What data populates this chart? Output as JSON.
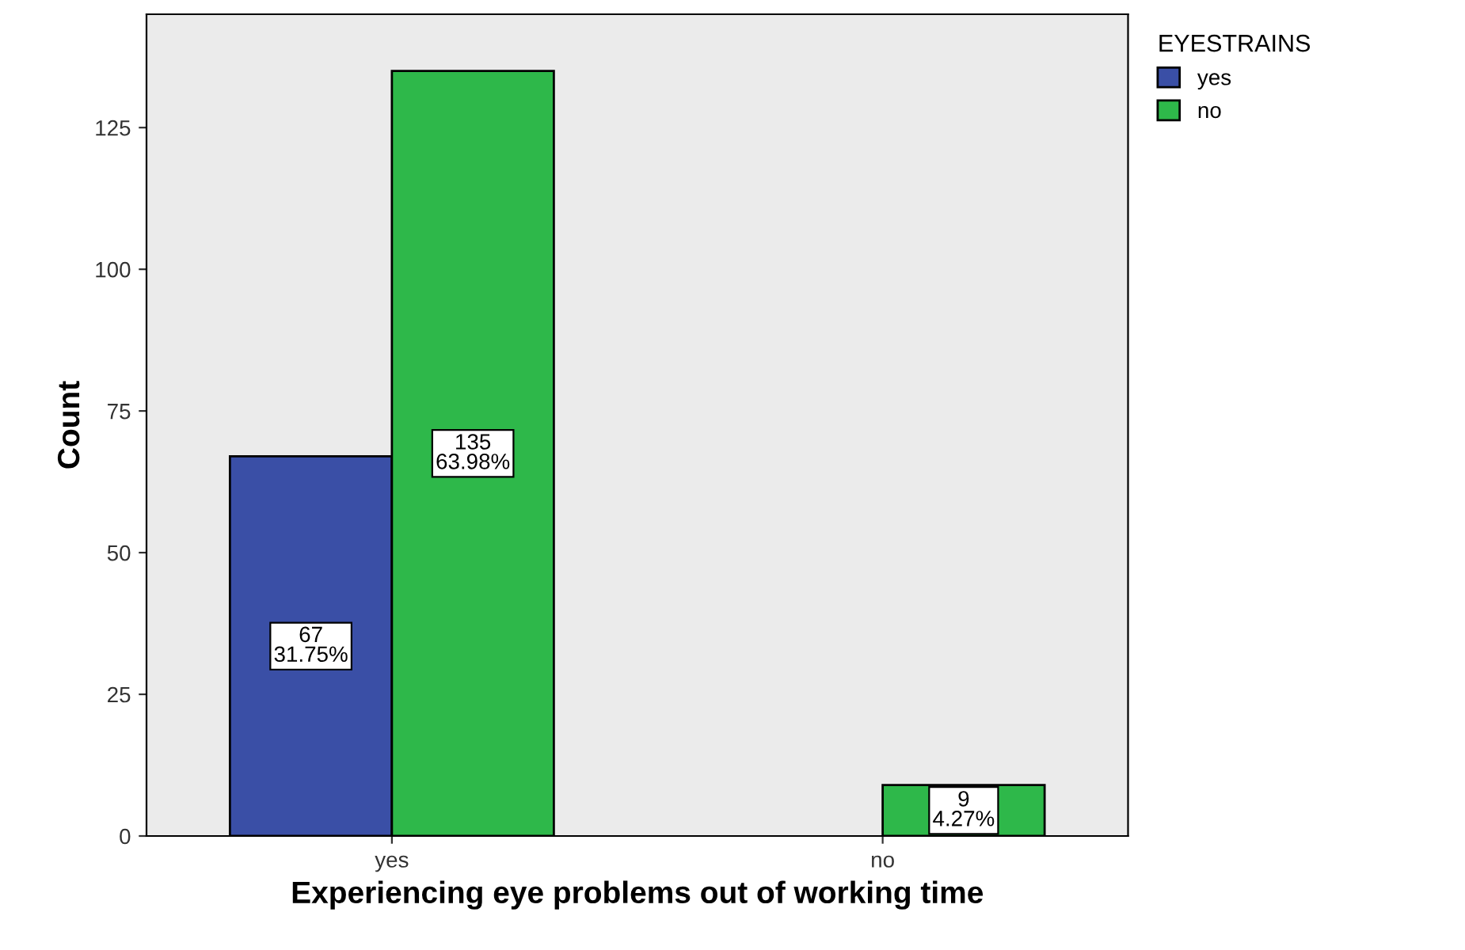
{
  "chart_data": {
    "type": "bar",
    "xlabel": "Experiencing eye problems out of working time",
    "ylabel": "Count",
    "legend_title": "EYESTRAINS",
    "categories": [
      "yes",
      "no"
    ],
    "series": [
      {
        "name": "yes",
        "color": "#3a4fa6",
        "values": [
          67,
          null
        ],
        "value_labels": [
          "67\n31.75%",
          null
        ]
      },
      {
        "name": "no",
        "color": "#2eb84a",
        "values": [
          135,
          9
        ],
        "value_labels": [
          "135\n63.98%",
          "9\n4.27%"
        ]
      }
    ],
    "ylim": [
      0,
      145
    ],
    "yticks": [
      0,
      25,
      50,
      75,
      100,
      125
    ],
    "grid": false,
    "legend": "top right"
  }
}
